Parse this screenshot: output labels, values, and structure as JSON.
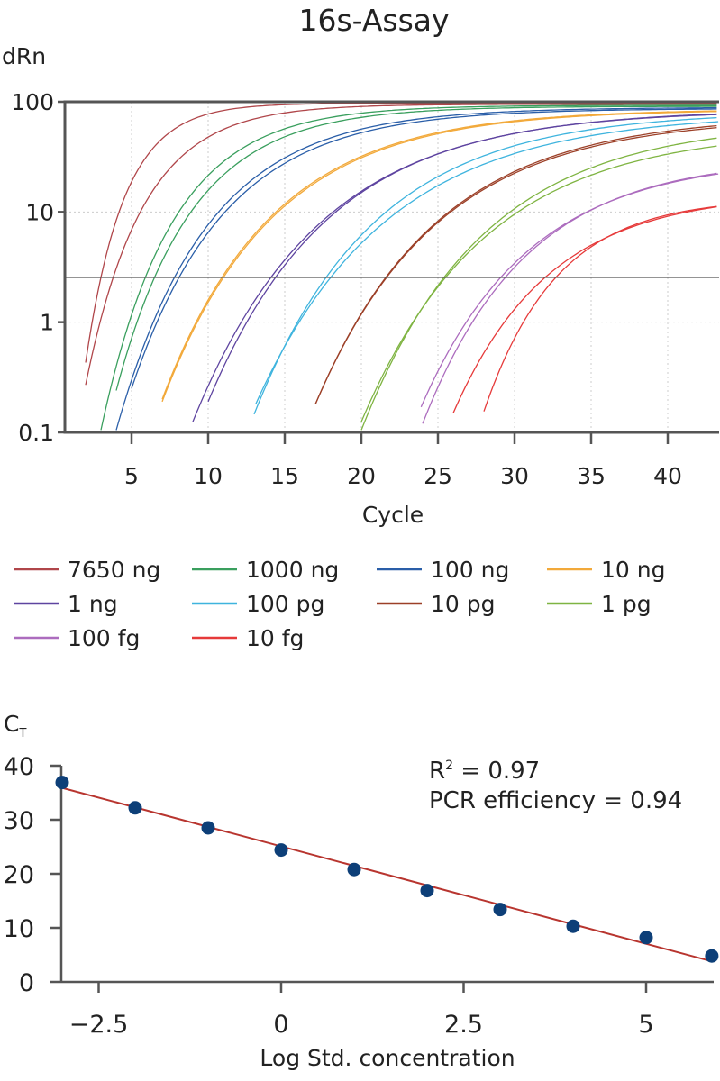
{
  "chart_data": [
    {
      "type": "line",
      "title": "16s-Assay",
      "ylabel": "dRn",
      "xlabel": "Cycle",
      "y_scale": "log",
      "ylim": [
        0.1,
        100
      ],
      "xlim": [
        0.6,
        43.4
      ],
      "x_ticks": [
        5,
        10,
        15,
        20,
        25,
        30,
        35,
        40
      ],
      "y_ticks": [
        {
          "value": 0.1,
          "label": "0.1"
        },
        {
          "value": 1,
          "label": "1"
        },
        {
          "value": 10,
          "label": "10"
        },
        {
          "value": 100,
          "label": "100"
        }
      ],
      "grid": "dotted",
      "threshold": 2.55,
      "legend_position": "bottom",
      "series": [
        {
          "name": "7650 ng",
          "color": "#b0464a",
          "replicates": [
            {
              "start_cycle": 2.0,
              "start_dRn": 0.43,
              "threshold_cycle": 3.0,
              "plateau_dRn": 97
            },
            {
              "start_cycle": 2.0,
              "start_dRn": 0.27,
              "threshold_cycle": 3.8,
              "plateau_dRn": 95
            }
          ]
        },
        {
          "name": "1000 ng",
          "color": "#3a9f5e",
          "replicates": [
            {
              "start_cycle": 3.0,
              "start_dRn": 0.105,
              "threshold_cycle": 5.9,
              "plateau_dRn": 93
            },
            {
              "start_cycle": 4.0,
              "start_dRn": 0.24,
              "threshold_cycle": 6.5,
              "plateau_dRn": 91
            }
          ]
        },
        {
          "name": "100 ng",
          "color": "#2a5ea8",
          "replicates": [
            {
              "start_cycle": 4.0,
              "start_dRn": 0.105,
              "threshold_cycle": 7.8,
              "plateau_dRn": 89
            },
            {
              "start_cycle": 5.0,
              "start_dRn": 0.25,
              "threshold_cycle": 8.1,
              "plateau_dRn": 87
            }
          ]
        },
        {
          "name": "10 ng",
          "color": "#f2a93a",
          "replicates": [
            {
              "start_cycle": 7.0,
              "start_dRn": 0.2,
              "threshold_cycle": 10.9,
              "plateau_dRn": 86
            },
            {
              "start_cycle": 7.0,
              "start_dRn": 0.19,
              "threshold_cycle": 11.0,
              "plateau_dRn": 85
            }
          ]
        },
        {
          "name": "1 ng",
          "color": "#5e44a0",
          "replicates": [
            {
              "start_cycle": 9.0,
              "start_dRn": 0.125,
              "threshold_cycle": 14.1,
              "plateau_dRn": 86
            },
            {
              "start_cycle": 10.0,
              "start_dRn": 0.19,
              "threshold_cycle": 14.4,
              "plateau_dRn": 84
            }
          ]
        },
        {
          "name": "100 pg",
          "color": "#3fb4de",
          "replicates": [
            {
              "start_cycle": 13.0,
              "start_dRn": 0.146,
              "threshold_cycle": 17.7,
              "plateau_dRn": 82
            },
            {
              "start_cycle": 13.1,
              "start_dRn": 0.18,
              "threshold_cycle": 18.0,
              "plateau_dRn": 79
            }
          ]
        },
        {
          "name": "10 pg",
          "color": "#9c4028",
          "replicates": [
            {
              "start_cycle": 17.0,
              "start_dRn": 0.18,
              "threshold_cycle": 21.6,
              "plateau_dRn": 76
            },
            {
              "start_cycle": 17.0,
              "start_dRn": 0.18,
              "threshold_cycle": 21.65,
              "plateau_dRn": 73
            }
          ]
        },
        {
          "name": "1 pg",
          "color": "#7fb442",
          "replicates": [
            {
              "start_cycle": 20.0,
              "start_dRn": 0.105,
              "threshold_cycle": 25.4,
              "plateau_dRn": 66
            },
            {
              "start_cycle": 20.0,
              "start_dRn": 0.125,
              "threshold_cycle": 25.5,
              "plateau_dRn": 56
            }
          ]
        },
        {
          "name": "100 fg",
          "color": "#ac6cbe",
          "replicates": [
            {
              "start_cycle": 23.9,
              "start_dRn": 0.17,
              "threshold_cycle": 29.1,
              "plateau_dRn": 31
            },
            {
              "start_cycle": 24.0,
              "start_dRn": 0.12,
              "threshold_cycle": 29.4,
              "plateau_dRn": 31
            }
          ]
        },
        {
          "name": "10 fg",
          "color": "#e63a3a",
          "replicates": [
            {
              "start_cycle": 26.0,
              "start_dRn": 0.15,
              "threshold_cycle": 32.0,
              "plateau_dRn": 15
            },
            {
              "start_cycle": 28.0,
              "start_dRn": 0.155,
              "threshold_cycle": 32.7,
              "plateau_dRn": 13.5
            }
          ]
        }
      ]
    },
    {
      "type": "scatter",
      "ylabel_main": "C",
      "ylabel_sub": "T",
      "xlabel": "Log Std. concentration",
      "xlim": [
        -3,
        5.9
      ],
      "ylim": [
        0,
        40
      ],
      "x_ticks": [
        {
          "value": -2.5,
          "label": "−2.5"
        },
        {
          "value": 0,
          "label": "0"
        },
        {
          "value": 2.5,
          "label": "2.5"
        },
        {
          "value": 5,
          "label": "5"
        }
      ],
      "y_ticks": [
        0,
        10,
        20,
        30,
        40
      ],
      "point_color": "#0d3f78",
      "fit_color": "#b8352f",
      "x": [
        -3,
        -2,
        -1,
        0,
        1,
        2,
        3,
        4,
        5,
        5.9
      ],
      "y": [
        36.9,
        32.2,
        28.5,
        24.4,
        20.8,
        16.9,
        13.4,
        10.3,
        8.2,
        4.8
      ],
      "fit_line": {
        "x": [
          -3,
          5.9
        ],
        "y": [
          35.9,
          3.8
        ]
      },
      "annotations": {
        "r2_label": "R",
        "r2_sup": "2",
        "r2_value": " = 0.97",
        "efficiency": "PCR efficiency = 0.94"
      }
    }
  ]
}
